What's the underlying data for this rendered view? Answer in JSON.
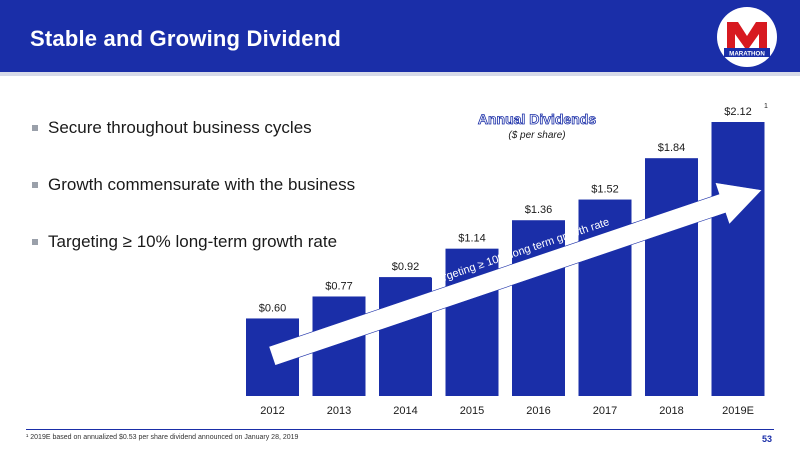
{
  "header": {
    "title": "Stable and Growing Dividend",
    "logo_text": "MARATHON",
    "colors": {
      "brand_blue": "#1a2ea8",
      "brand_red": "#d71920"
    }
  },
  "bullets": [
    "Secure throughout business cycles",
    "Growth commensurate with the business",
    "Targeting ≥ 10% long-term growth rate"
  ],
  "chart_data": {
    "type": "bar",
    "title": "Annual Dividends",
    "subtitle": "($ per share)",
    "categories": [
      "2012",
      "2013",
      "2014",
      "2015",
      "2016",
      "2017",
      "2018",
      "2019E"
    ],
    "values": [
      0.6,
      0.77,
      0.92,
      1.14,
      1.36,
      1.52,
      1.84,
      2.12
    ],
    "data_labels": [
      "$0.60",
      "$0.77",
      "$0.92",
      "$1.14",
      "$1.36",
      "$1.52",
      "$1.84",
      "$2.12"
    ],
    "superscript_on_last": "1",
    "ylim": [
      0,
      2.12
    ],
    "grid": false,
    "bar_color": "#1a2ea8",
    "annotation": "Targeting ≥ 10% long term growth rate"
  },
  "footer": {
    "footnote": "¹ 2019E based on annualized $0.53 per share dividend announced on January 28, 2019",
    "page_number": "53"
  }
}
